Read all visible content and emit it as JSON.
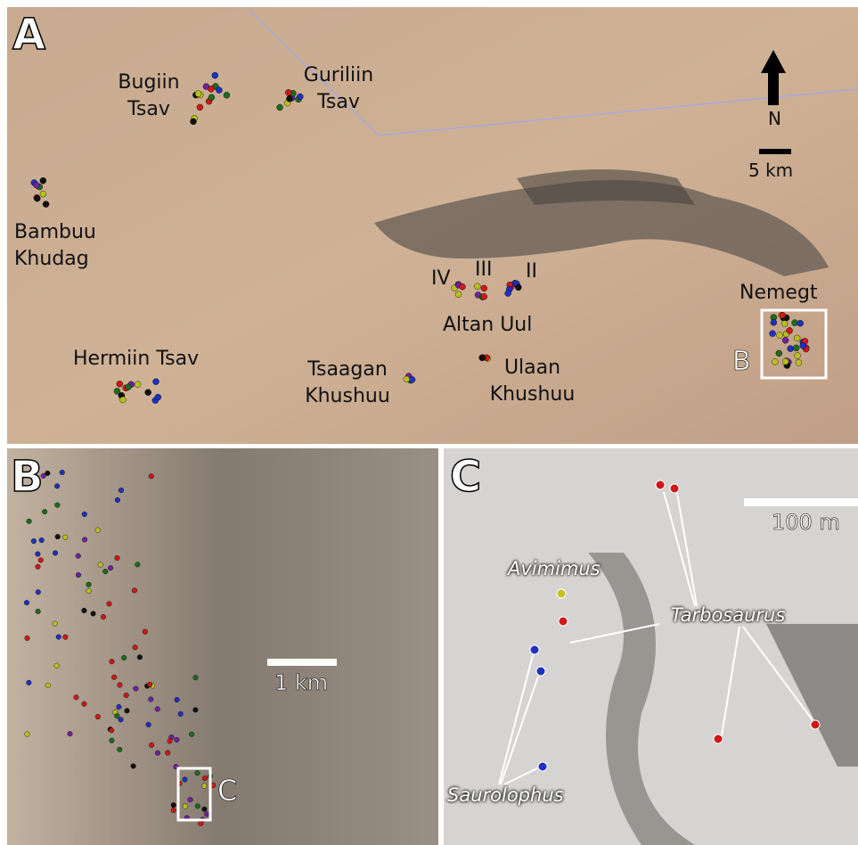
{
  "panel_a": {
    "label": "A",
    "north": "N",
    "scale": "5 km",
    "inset": "B",
    "places": [
      "Bugiin Tsav",
      "Guriliin Tsav",
      "Bambuu Khudag",
      "IV",
      "III",
      "II",
      "Altan Uul",
      "Nemegt",
      "Hermiin Tsav",
      "Tsaagan Khushuu",
      "Ulaan Khushuu"
    ]
  },
  "panel_b": {
    "label": "B",
    "scale": "1 km",
    "inset": "C"
  },
  "panel_c": {
    "label": "C",
    "scale": "100 m",
    "taxa": [
      "Avimimus",
      "Tarbosaurus",
      "Saurolophus"
    ]
  }
}
